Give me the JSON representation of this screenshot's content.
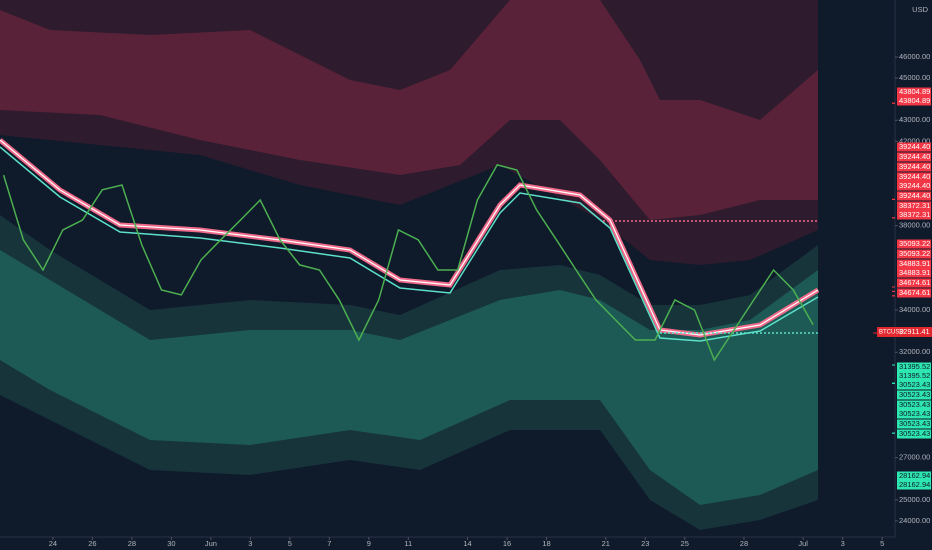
{
  "chart_data": {
    "type": "line",
    "currency": "USD",
    "symbol": "BTCUSD",
    "last_price": {
      "value": 32911.41,
      "label": "32911.41"
    },
    "last_color": "#e0282e",
    "xlim": [
      -2.68,
      42.65
    ],
    "ylim": [
      23240,
      48700
    ],
    "xticks": [
      {
        "value": 0,
        "label": "24"
      },
      {
        "value": 2,
        "label": "26"
      },
      {
        "value": 4,
        "label": "28"
      },
      {
        "value": 6,
        "label": "30"
      },
      {
        "value": 8,
        "label": "Jun"
      },
      {
        "value": 10,
        "label": "3"
      },
      {
        "value": 12,
        "label": "5"
      },
      {
        "value": 14,
        "label": "7"
      },
      {
        "value": 16,
        "label": "9"
      },
      {
        "value": 18,
        "label": "11"
      },
      {
        "value": 21,
        "label": "14"
      },
      {
        "value": 23,
        "label": "16"
      },
      {
        "value": 25,
        "label": "18"
      },
      {
        "value": 28,
        "label": "21"
      },
      {
        "value": 30,
        "label": "23"
      },
      {
        "value": 32,
        "label": "25"
      },
      {
        "value": 35,
        "label": "28"
      },
      {
        "value": 38,
        "label": "Jul"
      },
      {
        "value": 40,
        "label": "3"
      },
      {
        "value": 42,
        "label": "5"
      }
    ],
    "yticks": [
      {
        "value": 46000,
        "label": "46000.00"
      },
      {
        "value": 45000,
        "label": "45000.00"
      },
      {
        "value": 43000,
        "label": "43000.00"
      },
      {
        "value": 42000,
        "label": "42000.00"
      },
      {
        "value": 38000,
        "label": "38000.00"
      },
      {
        "value": 34000,
        "label": "34000.00"
      },
      {
        "value": 32000,
        "label": "32000.00"
      },
      {
        "value": 27000,
        "label": "27000.00"
      },
      {
        "value": 25000,
        "label": "25000.00"
      },
      {
        "value": 24000,
        "label": "24000.00"
      }
    ],
    "series": [
      {
        "name": "BTCUSD",
        "color": "#4caf50",
        "x": [
          -2.5,
          -1.5,
          -0.5,
          0.5,
          1.5,
          2.5,
          3.5,
          4.5,
          5.5,
          6.5,
          7.5,
          8.5,
          9.5,
          10.5,
          11.5,
          12.5,
          13.5,
          14.5,
          15.5,
          16.5,
          17.5,
          18.5,
          19.5,
          20.5,
          21.5,
          22.5,
          23.5,
          24.5,
          25.5,
          26.5,
          27.5,
          28.5,
          29.5,
          30.5,
          31.5,
          32.5,
          33.5,
          34.5,
          35.5,
          36.5,
          37.5,
          38.5
        ],
        "values": [
          40400,
          37330,
          35900,
          37800,
          38270,
          39700,
          39930,
          37090,
          34950,
          34720,
          36380,
          37330,
          38270,
          39220,
          37330,
          36140,
          35900,
          34480,
          32580,
          34480,
          37800,
          37330,
          35900,
          35900,
          39220,
          40880,
          40640,
          38750,
          37330,
          35900,
          34480,
          33530,
          32580,
          32580,
          34480,
          34000,
          31630,
          33060,
          34480,
          35900,
          34950,
          33300
        ]
      }
    ],
    "price_labels": [
      {
        "value": 43804.89,
        "label": "43804.89",
        "color": "#f23645"
      },
      {
        "value": 43804.89,
        "label": "43804.89",
        "color": "#f23645"
      },
      {
        "value": 39244.4,
        "label": "39244.40",
        "color": "#f23645"
      },
      {
        "value": 39244.4,
        "label": "39244.40",
        "color": "#f23645"
      },
      {
        "value": 39244.4,
        "label": "39244.40",
        "color": "#f23645"
      },
      {
        "value": 39244.4,
        "label": "39244.40",
        "color": "#f23645"
      },
      {
        "value": 39244.4,
        "label": "39244.40",
        "color": "#f23645"
      },
      {
        "value": 39244.4,
        "label": "39244.40",
        "color": "#f23645"
      },
      {
        "value": 38372.31,
        "label": "38372.31",
        "color": "#f23645"
      },
      {
        "value": 38372.31,
        "label": "38372.31",
        "color": "#f23645"
      },
      {
        "value": 35093.22,
        "label": "35093.22",
        "color": "#f23645"
      },
      {
        "value": 35093.22,
        "label": "35093.22",
        "color": "#f23645"
      },
      {
        "value": 34883.91,
        "label": "34883.91",
        "color": "#f23645"
      },
      {
        "value": 34883.91,
        "label": "34883.91",
        "color": "#f23645"
      },
      {
        "value": 34674.61,
        "label": "34674.61",
        "color": "#f23645"
      },
      {
        "value": 34674.61,
        "label": "34674.61",
        "color": "#f23645"
      },
      {
        "value": 31395.52,
        "label": "31395.52",
        "color": "#2ee6b0"
      },
      {
        "value": 31395.52,
        "label": "31395.52",
        "color": "#2ee6b0"
      },
      {
        "value": 30523.43,
        "label": "30523.43",
        "color": "#2ee6b0"
      },
      {
        "value": 30523.43,
        "label": "30523.43",
        "color": "#2ee6b0"
      },
      {
        "value": 30523.43,
        "label": "30523.43",
        "color": "#2ee6b0"
      },
      {
        "value": 30523.43,
        "label": "30523.43",
        "color": "#2ee6b0"
      },
      {
        "value": 30523.43,
        "label": "30523.43",
        "color": "#2ee6b0"
      },
      {
        "value": 30523.43,
        "label": "30523.43",
        "color": "#2ee6b0"
      },
      {
        "value": 28162.94,
        "label": "28162.94",
        "color": "#2ee6b0"
      },
      {
        "value": 28162.94,
        "label": "28162.94",
        "color": "#2ee6b0"
      }
    ]
  }
}
